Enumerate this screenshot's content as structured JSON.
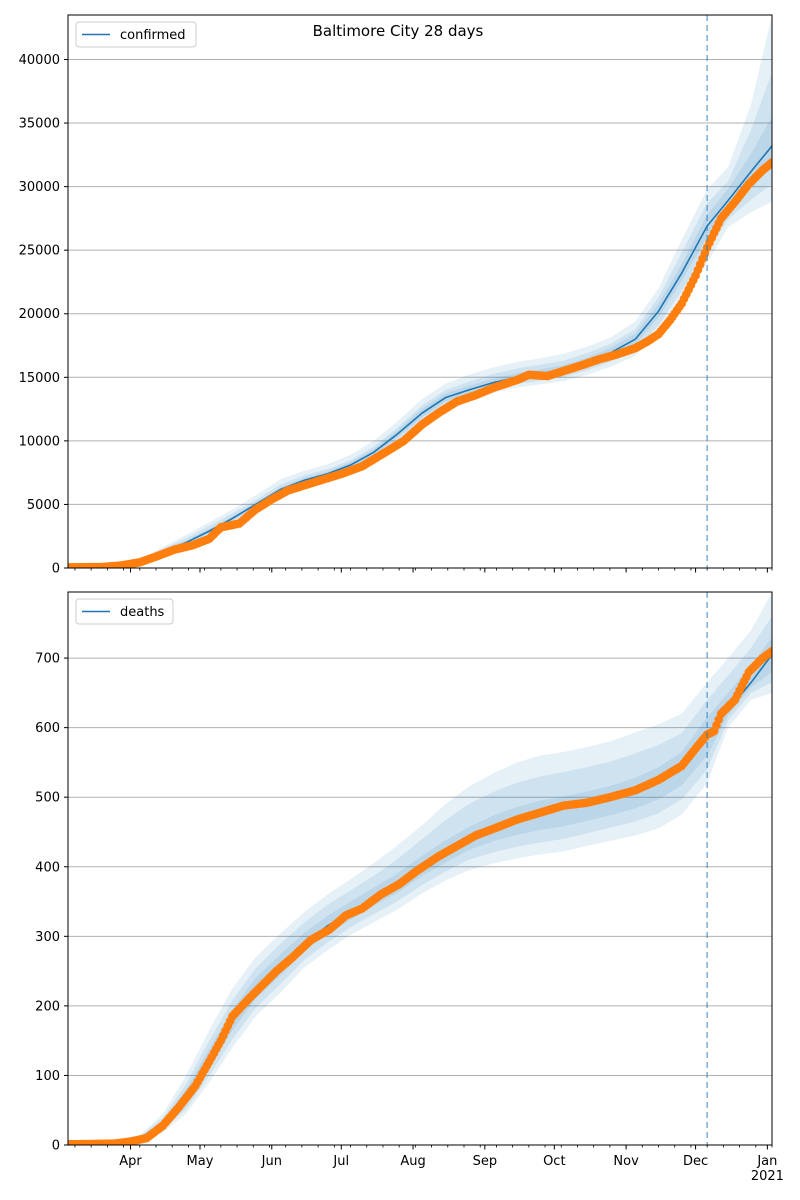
{
  "chart_data": [
    {
      "type": "line",
      "title": "Baltimore City 28 days",
      "legend": {
        "label": "confirmed",
        "placement": "top-left"
      },
      "grid": "horizontal",
      "xlim": [
        "2020-03-05",
        "2021-01-03"
      ],
      "ylim": [
        0,
        43500
      ],
      "yticks": [
        0,
        5000,
        10000,
        15000,
        20000,
        25000,
        30000,
        35000,
        40000
      ],
      "forecast_start": "2020-12-06",
      "colors": {
        "model": "#1f77b4",
        "observed": "#ff7f0e",
        "band": "#1f77b4",
        "grid": "#b0b0b0"
      },
      "model_line": {
        "x": [
          "2020-03-05",
          "2020-03-25",
          "2020-04-05",
          "2020-04-15",
          "2020-04-25",
          "2020-05-05",
          "2020-05-15",
          "2020-05-25",
          "2020-06-05",
          "2020-06-15",
          "2020-06-25",
          "2020-07-05",
          "2020-07-15",
          "2020-07-25",
          "2020-08-05",
          "2020-08-15",
          "2020-08-25",
          "2020-09-05",
          "2020-09-15",
          "2020-09-25",
          "2020-10-05",
          "2020-10-15",
          "2020-10-25",
          "2020-11-05",
          "2020-11-15",
          "2020-11-25",
          "2020-12-06",
          "2020-12-15",
          "2020-12-25",
          "2021-01-03"
        ],
        "y": [
          0,
          150,
          550,
          1300,
          2000,
          2900,
          3900,
          5000,
          6200,
          6900,
          7400,
          8100,
          9100,
          10500,
          12200,
          13400,
          14000,
          14600,
          15000,
          15300,
          15600,
          16200,
          16900,
          18000,
          20200,
          23200,
          26900,
          28900,
          31200,
          33200
        ]
      },
      "bands": [
        {
          "lower": [
            0,
            120,
            450,
            1050,
            1600,
            2450,
            3450,
            4550,
            5700,
            6350,
            6800,
            7450,
            8400,
            9700,
            11300,
            12500,
            13200,
            13800,
            14200,
            14450,
            14700,
            15200,
            15800,
            16700,
            18500,
            21000,
            24000,
            26800,
            28000,
            28800
          ],
          "upper": [
            0,
            200,
            680,
            1650,
            2600,
            3600,
            4600,
            5700,
            7000,
            7650,
            8150,
            8900,
            10000,
            11500,
            13300,
            14500,
            15200,
            15800,
            16200,
            16500,
            16850,
            17400,
            18100,
            19400,
            22000,
            25800,
            29800,
            31500,
            36500,
            43500
          ]
        },
        {
          "lower": [
            0,
            130,
            490,
            1150,
            1770,
            2620,
            3620,
            4730,
            5900,
            6560,
            7020,
            7680,
            8640,
            9980,
            11600,
            12790,
            13450,
            14050,
            14470,
            14730,
            15000,
            15550,
            16200,
            17200,
            19100,
            21800,
            25000,
            27400,
            29000,
            30200
          ],
          "upper": [
            0,
            180,
            620,
            1500,
            2350,
            3300,
            4300,
            5350,
            6600,
            7300,
            7780,
            8480,
            9550,
            11000,
            12800,
            14000,
            14650,
            15280,
            15700,
            16000,
            16300,
            16900,
            17600,
            18800,
            21300,
            24800,
            28700,
            30400,
            34500,
            39000
          ]
        },
        {
          "lower": [
            0,
            140,
            520,
            1230,
            1890,
            2760,
            3760,
            4870,
            6040,
            6720,
            7210,
            7880,
            8860,
            10240,
            11880,
            13080,
            13700,
            14300,
            14720,
            15000,
            15290,
            15870,
            16550,
            17600,
            19700,
            22600,
            26000,
            28000,
            30000,
            31500
          ],
          "upper": [
            0,
            165,
            590,
            1390,
            2150,
            3070,
            4060,
            5150,
            6370,
            7080,
            7590,
            8320,
            9340,
            10780,
            12550,
            13730,
            14320,
            14920,
            15310,
            15620,
            15950,
            16550,
            17280,
            18450,
            20800,
            23900,
            27800,
            29800,
            32600,
            35500
          ]
        }
      ],
      "observed": {
        "x": [
          "2020-03-05",
          "2020-03-20",
          "2020-03-28",
          "2020-04-05",
          "2020-04-12",
          "2020-04-20",
          "2020-04-28",
          "2020-05-05",
          "2020-05-10",
          "2020-05-18",
          "2020-05-25",
          "2020-06-01",
          "2020-06-08",
          "2020-06-15",
          "2020-06-22",
          "2020-07-01",
          "2020-07-10",
          "2020-07-20",
          "2020-07-28",
          "2020-08-05",
          "2020-08-12",
          "2020-08-20",
          "2020-08-28",
          "2020-09-05",
          "2020-09-15",
          "2020-09-20",
          "2020-09-28",
          "2020-10-05",
          "2020-10-12",
          "2020-10-20",
          "2020-10-28",
          "2020-11-05",
          "2020-11-10",
          "2020-11-15",
          "2020-11-20",
          "2020-11-25",
          "2020-12-01",
          "2020-12-06",
          "2020-12-12",
          "2020-12-18",
          "2020-12-24",
          "2020-12-30",
          "2021-01-03"
        ],
        "y": [
          50,
          80,
          200,
          450,
          900,
          1450,
          1800,
          2300,
          3200,
          3500,
          4600,
          5400,
          6100,
          6500,
          6900,
          7400,
          8000,
          9100,
          10000,
          11300,
          12200,
          13100,
          13600,
          14200,
          14800,
          15200,
          15100,
          15500,
          15900,
          16400,
          16800,
          17300,
          17800,
          18400,
          19500,
          20800,
          23000,
          25200,
          27500,
          28800,
          30200,
          31300,
          31900
        ]
      }
    },
    {
      "type": "line",
      "title": "",
      "legend": {
        "label": "deaths",
        "placement": "top-left"
      },
      "grid": "horizontal",
      "xlim": [
        "2020-03-05",
        "2021-01-03"
      ],
      "ylim": [
        0,
        795
      ],
      "yticks": [
        0,
        100,
        200,
        300,
        400,
        500,
        600,
        700
      ],
      "xtick_labels": [
        "Apr",
        "May",
        "Jun",
        "Jul",
        "Aug",
        "Sep",
        "Oct",
        "Nov",
        "Dec",
        "Jan\n2021"
      ],
      "xticks": [
        "2020-04-01",
        "2020-05-01",
        "2020-06-01",
        "2020-07-01",
        "2020-08-01",
        "2020-09-01",
        "2020-10-01",
        "2020-11-01",
        "2020-12-01",
        "2021-01-01"
      ],
      "forecast_start": "2020-12-06",
      "colors": {
        "model": "#1f77b4",
        "observed": "#ff7f0e",
        "band": "#1f77b4",
        "grid": "#b0b0b0"
      },
      "model_line": {
        "x": [
          "2020-03-05",
          "2020-03-28",
          "2020-04-05",
          "2020-04-15",
          "2020-04-25",
          "2020-05-05",
          "2020-05-15",
          "2020-05-25",
          "2020-06-05",
          "2020-06-15",
          "2020-06-25",
          "2020-07-05",
          "2020-07-15",
          "2020-07-25",
          "2020-08-05",
          "2020-08-15",
          "2020-08-25",
          "2020-09-05",
          "2020-09-15",
          "2020-09-25",
          "2020-10-05",
          "2020-10-15",
          "2020-10-25",
          "2020-11-05",
          "2020-11-15",
          "2020-11-25",
          "2020-12-06",
          "2020-12-15",
          "2020-12-25",
          "2021-01-03"
        ],
        "y": [
          0,
          3,
          10,
          30,
          70,
          125,
          180,
          225,
          260,
          290,
          315,
          335,
          355,
          375,
          400,
          420,
          440,
          455,
          468,
          478,
          485,
          492,
          500,
          510,
          525,
          545,
          590,
          625,
          665,
          705
        ]
      },
      "bands": [
        {
          "lower": [
            0,
            2,
            6,
            18,
            45,
            90,
            140,
            185,
            220,
            255,
            280,
            302,
            320,
            338,
            362,
            380,
            395,
            405,
            412,
            418,
            422,
            430,
            437,
            445,
            455,
            475,
            520,
            600,
            640,
            650
          ],
          "upper": [
            0,
            5,
            14,
            45,
            100,
            165,
            225,
            270,
            305,
            335,
            360,
            382,
            405,
            430,
            460,
            490,
            515,
            535,
            550,
            560,
            565,
            572,
            580,
            593,
            605,
            620,
            665,
            700,
            740,
            795
          ]
        },
        {
          "lower": [
            0,
            2,
            7,
            21,
            52,
            100,
            152,
            197,
            232,
            266,
            291,
            313,
            332,
            350,
            374,
            393,
            410,
            421,
            429,
            435,
            440,
            448,
            456,
            465,
            477,
            497,
            540,
            610,
            650,
            665
          ],
          "upper": [
            0,
            4,
            12,
            39,
            88,
            150,
            208,
            254,
            290,
            320,
            345,
            366,
            387,
            410,
            440,
            467,
            490,
            508,
            521,
            530,
            536,
            543,
            551,
            563,
            575,
            592,
            640,
            675,
            715,
            760
          ]
        },
        {
          "lower": [
            0,
            3,
            8,
            25,
            60,
            112,
            165,
            210,
            245,
            278,
            303,
            324,
            344,
            362,
            387,
            406,
            424,
            437,
            446,
            453,
            458,
            466,
            474,
            484,
            497,
            517,
            560,
            618,
            658,
            680
          ],
          "upper": [
            0,
            4,
            11,
            35,
            80,
            138,
            195,
            240,
            275,
            305,
            329,
            350,
            370,
            390,
            416,
            438,
            457,
            474,
            486,
            495,
            501,
            508,
            516,
            528,
            543,
            565,
            615,
            650,
            690,
            730
          ]
        }
      ],
      "observed": {
        "x": [
          "2020-03-05",
          "2020-03-25",
          "2020-04-01",
          "2020-04-08",
          "2020-04-15",
          "2020-04-22",
          "2020-04-29",
          "2020-05-05",
          "2020-05-10",
          "2020-05-15",
          "2020-05-22",
          "2020-05-28",
          "2020-06-03",
          "2020-06-10",
          "2020-06-18",
          "2020-06-26",
          "2020-07-03",
          "2020-07-10",
          "2020-07-18",
          "2020-07-26",
          "2020-08-03",
          "2020-08-12",
          "2020-08-20",
          "2020-08-28",
          "2020-09-05",
          "2020-09-15",
          "2020-09-25",
          "2020-10-05",
          "2020-10-15",
          "2020-10-25",
          "2020-11-05",
          "2020-11-15",
          "2020-11-25",
          "2020-12-01",
          "2020-12-06",
          "2020-12-09",
          "2020-12-12",
          "2020-12-18",
          "2020-12-24",
          "2020-12-30",
          "2021-01-03"
        ],
        "y": [
          1,
          2,
          5,
          10,
          28,
          55,
          85,
          120,
          150,
          185,
          210,
          230,
          250,
          270,
          295,
          310,
          330,
          340,
          360,
          375,
          395,
          415,
          430,
          445,
          455,
          468,
          478,
          488,
          492,
          500,
          510,
          525,
          545,
          570,
          590,
          595,
          620,
          640,
          680,
          700,
          710
        ]
      }
    }
  ]
}
